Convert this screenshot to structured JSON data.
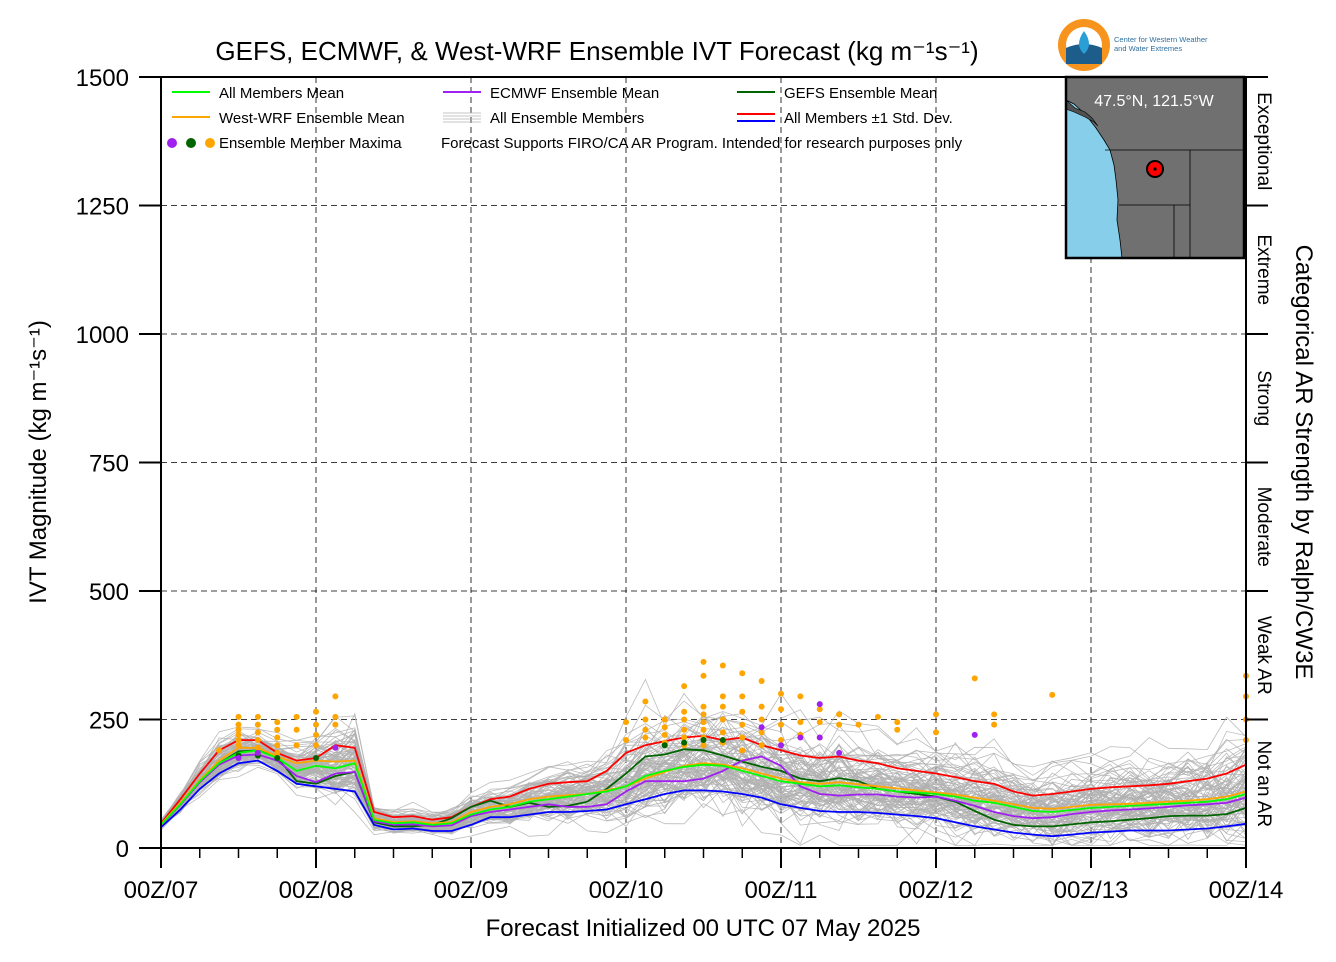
{
  "chart_data": {
    "type": "line",
    "title": "GEFS, ECMWF, & West-WRF Ensemble IVT Forecast (kg m⁻¹s⁻¹)",
    "ylabel": "IVT Magnitude (kg m⁻¹s⁻¹)",
    "xlabel": "Forecast Initialized 00 UTC 07 May 2025",
    "right_label": "Categorical AR Strength by Ralph/CW3E",
    "ylim": [
      0,
      1500
    ],
    "yticks": [
      "0",
      "250",
      "500",
      "750",
      "1000",
      "1250",
      "1500"
    ],
    "xlim": [
      0,
      168
    ],
    "xticks": [
      {
        "h": 0,
        "label": "00Z/07"
      },
      {
        "h": 24,
        "label": "00Z/08"
      },
      {
        "h": 48,
        "label": "00Z/09"
      },
      {
        "h": 72,
        "label": "00Z/10"
      },
      {
        "h": 96,
        "label": "00Z/11"
      },
      {
        "h": 120,
        "label": "00Z/12"
      },
      {
        "h": 144,
        "label": "00Z/13"
      },
      {
        "h": 168,
        "label": "00Z/14"
      }
    ],
    "grid": true,
    "categories_ar": [
      {
        "label": "Not an AR",
        "from": 0,
        "to": 250
      },
      {
        "label": "Weak AR",
        "from": 250,
        "to": 500
      },
      {
        "label": "Moderate",
        "from": 500,
        "to": 750
      },
      {
        "label": "Strong",
        "from": 750,
        "to": 1000
      },
      {
        "label": "Extreme",
        "from": 1000,
        "to": 1250
      },
      {
        "label": "Exceptional",
        "from": 1250,
        "to": 1500
      }
    ],
    "legend": {
      "items": [
        {
          "label": "All Members Mean",
          "color": "#00ff00",
          "kind": "line"
        },
        {
          "label": "ECMWF Ensemble Mean",
          "color": "#a020f0",
          "kind": "line"
        },
        {
          "label": "GEFS Ensemble Mean",
          "color": "#006400",
          "kind": "line"
        },
        {
          "label": "West-WRF Ensemble Mean",
          "color": "#ffa500",
          "kind": "line"
        },
        {
          "label": "All Ensemble Members",
          "color": "#b0b0b0",
          "kind": "multiline"
        },
        {
          "label": "All Members ±1 Std. Dev.",
          "color": "#ff0000",
          "color2": "#0000ff",
          "kind": "double"
        },
        {
          "label": "Ensemble Member Maxima",
          "colors": [
            "#a020f0",
            "#006400",
            "#ffa500"
          ],
          "kind": "dots"
        }
      ],
      "note": "Forecast Supports FIRO/CA AR Program. Intended for research purposes only",
      "placement": "top-left"
    },
    "inset_map": {
      "label": "47.5°N, 121.5°W",
      "ocean_color": "#87ceeb",
      "land_color": "#707070",
      "marker_color": "#ff0000"
    },
    "logo": {
      "text_line1": "Center for Western Weather",
      "text_line2": "and Water Extremes",
      "colors": [
        "#f7941d",
        "#2a9fd6",
        "#1c5d8c"
      ]
    },
    "x": [
      0,
      3,
      6,
      9,
      12,
      15,
      18,
      21,
      24,
      27,
      30,
      33,
      36,
      39,
      42,
      45,
      48,
      51,
      54,
      57,
      60,
      63,
      66,
      69,
      72,
      75,
      78,
      81,
      84,
      87,
      90,
      93,
      96,
      99,
      102,
      105,
      108,
      111,
      114,
      117,
      120,
      123,
      126,
      129,
      132,
      135,
      138,
      141,
      144,
      147,
      150,
      153,
      156,
      159,
      162,
      165,
      168
    ],
    "series": [
      {
        "name": "All Members ±1 Std. Dev.",
        "role": "upper",
        "color": "#ff0000",
        "values": [
          48,
          95,
          145,
          190,
          210,
          210,
          185,
          170,
          175,
          200,
          195,
          70,
          60,
          62,
          55,
          60,
          80,
          95,
          100,
          115,
          125,
          128,
          130,
          150,
          185,
          200,
          208,
          215,
          218,
          210,
          215,
          200,
          190,
          180,
          175,
          178,
          170,
          165,
          155,
          150,
          145,
          138,
          130,
          125,
          110,
          102,
          105,
          110,
          115,
          118,
          120,
          122,
          125,
          130,
          135,
          145,
          162
        ]
      },
      {
        "name": "All Members Mean",
        "color": "#00ff00",
        "values": [
          45,
          85,
          130,
          165,
          185,
          190,
          175,
          150,
          160,
          155,
          165,
          55,
          48,
          50,
          45,
          48,
          65,
          75,
          80,
          90,
          95,
          100,
          105,
          110,
          120,
          140,
          150,
          158,
          162,
          160,
          150,
          140,
          130,
          125,
          120,
          122,
          118,
          115,
          110,
          108,
          105,
          100,
          92,
          88,
          80,
          72,
          70,
          74,
          78,
          80,
          82,
          84,
          86,
          88,
          90,
          95,
          105
        ]
      },
      {
        "name": "West-WRF Ensemble Mean",
        "color": "#ffa500",
        "values": [
          46,
          88,
          132,
          170,
          195,
          195,
          178,
          165,
          170,
          168,
          170,
          58,
          50,
          52,
          48,
          50,
          70,
          80,
          85,
          95,
          100,
          103,
          105,
          112,
          120,
          135,
          148,
          160,
          165,
          162,
          155,
          145,
          135,
          128,
          125,
          128,
          124,
          120,
          116,
          112,
          108,
          104,
          98,
          92,
          85,
          78,
          76,
          80,
          84,
          85,
          86,
          88,
          90,
          92,
          95,
          100,
          110
        ]
      },
      {
        "name": "ECMWF Ensemble Mean",
        "color": "#a020f0",
        "values": [
          44,
          84,
          128,
          162,
          180,
          182,
          170,
          140,
          128,
          145,
          148,
          52,
          45,
          46,
          42,
          44,
          62,
          70,
          75,
          80,
          85,
          80,
          80,
          85,
          110,
          130,
          130,
          130,
          135,
          150,
          170,
          178,
          160,
          120,
          105,
          102,
          104,
          104,
          100,
          98,
          100,
          92,
          82,
          70,
          62,
          58,
          60,
          66,
          70,
          73,
          75,
          77,
          80,
          83,
          85,
          88,
          98
        ]
      },
      {
        "name": "GEFS Ensemble Mean",
        "color": "#006400",
        "values": [
          45,
          86,
          130,
          165,
          188,
          190,
          176,
          130,
          125,
          140,
          148,
          50,
          42,
          42,
          45,
          58,
          80,
          92,
          80,
          88,
          80,
          82,
          90,
          115,
          145,
          178,
          182,
          192,
          190,
          180,
          168,
          158,
          150,
          135,
          130,
          136,
          130,
          115,
          110,
          105,
          100,
          90,
          72,
          55,
          45,
          42,
          42,
          46,
          50,
          52,
          55,
          58,
          62,
          63,
          63,
          66,
          78
        ]
      },
      {
        "name": "All Members ±1 Std. Dev.",
        "role": "lower",
        "color": "#0000ff",
        "values": [
          40,
          75,
          115,
          145,
          165,
          170,
          150,
          125,
          120,
          115,
          110,
          45,
          36,
          38,
          33,
          33,
          45,
          60,
          60,
          65,
          70,
          70,
          72,
          75,
          85,
          95,
          105,
          112,
          112,
          110,
          105,
          98,
          85,
          78,
          72,
          70,
          70,
          68,
          65,
          62,
          58,
          50,
          42,
          36,
          30,
          26,
          23,
          26,
          30,
          32,
          34,
          34,
          34,
          36,
          38,
          42,
          47
        ]
      }
    ],
    "ensemble_member_count": 100,
    "ensemble_range_color": "#b0b0b0",
    "maxima": {
      "orange": [
        [
          9,
          190
        ],
        [
          12,
          200
        ],
        [
          12,
          210
        ],
        [
          12,
          220
        ],
        [
          12,
          230
        ],
        [
          12,
          240
        ],
        [
          12,
          255
        ],
        [
          15,
          180
        ],
        [
          15,
          195
        ],
        [
          15,
          210
        ],
        [
          15,
          225
        ],
        [
          15,
          240
        ],
        [
          15,
          255
        ],
        [
          18,
          185
        ],
        [
          18,
          200
        ],
        [
          18,
          215
        ],
        [
          18,
          230
        ],
        [
          18,
          245
        ],
        [
          21,
          200
        ],
        [
          21,
          230
        ],
        [
          21,
          255
        ],
        [
          24,
          200
        ],
        [
          24,
          220
        ],
        [
          24,
          240
        ],
        [
          24,
          265
        ],
        [
          27,
          240
        ],
        [
          27,
          255
        ],
        [
          27,
          295
        ],
        [
          72,
          210
        ],
        [
          72,
          245
        ],
        [
          75,
          215
        ],
        [
          75,
          230
        ],
        [
          75,
          250
        ],
        [
          75,
          285
        ],
        [
          78,
          205
        ],
        [
          78,
          220
        ],
        [
          78,
          235
        ],
        [
          78,
          250
        ],
        [
          81,
          200
        ],
        [
          81,
          215
        ],
        [
          81,
          230
        ],
        [
          81,
          250
        ],
        [
          81,
          265
        ],
        [
          81,
          315
        ],
        [
          84,
          200
        ],
        [
          84,
          215
        ],
        [
          84,
          230
        ],
        [
          84,
          245
        ],
        [
          84,
          260
        ],
        [
          84,
          275
        ],
        [
          84,
          335
        ],
        [
          84,
          362
        ],
        [
          87,
          205
        ],
        [
          87,
          225
        ],
        [
          87,
          250
        ],
        [
          87,
          275
        ],
        [
          87,
          295
        ],
        [
          87,
          355
        ],
        [
          90,
          190
        ],
        [
          90,
          215
        ],
        [
          90,
          240
        ],
        [
          90,
          265
        ],
        [
          90,
          295
        ],
        [
          90,
          340
        ],
        [
          93,
          200
        ],
        [
          93,
          225
        ],
        [
          93,
          250
        ],
        [
          93,
          275
        ],
        [
          93,
          325
        ],
        [
          96,
          210
        ],
        [
          96,
          240
        ],
        [
          96,
          270
        ],
        [
          96,
          300
        ],
        [
          99,
          220
        ],
        [
          99,
          245
        ],
        [
          99,
          295
        ],
        [
          102,
          215
        ],
        [
          102,
          245
        ],
        [
          102,
          270
        ],
        [
          105,
          240
        ],
        [
          105,
          260
        ],
        [
          108,
          240
        ],
        [
          111,
          255
        ],
        [
          114,
          230
        ],
        [
          114,
          245
        ],
        [
          120,
          225
        ],
        [
          120,
          260
        ],
        [
          126,
          330
        ],
        [
          129,
          240
        ],
        [
          129,
          260
        ],
        [
          138,
          298
        ],
        [
          168,
          210
        ],
        [
          168,
          250
        ],
        [
          168,
          295
        ],
        [
          168,
          335
        ]
      ],
      "purple": [
        [
          12,
          175
        ],
        [
          15,
          185
        ],
        [
          27,
          195
        ],
        [
          93,
          235
        ],
        [
          96,
          200
        ],
        [
          99,
          215
        ],
        [
          102,
          215
        ],
        [
          102,
          280
        ],
        [
          105,
          185
        ],
        [
          126,
          220
        ]
      ],
      "green": [
        [
          12,
          180
        ],
        [
          15,
          180
        ],
        [
          18,
          175
        ],
        [
          24,
          175
        ],
        [
          78,
          200
        ],
        [
          81,
          205
        ],
        [
          84,
          210
        ],
        [
          87,
          210
        ]
      ]
    }
  }
}
